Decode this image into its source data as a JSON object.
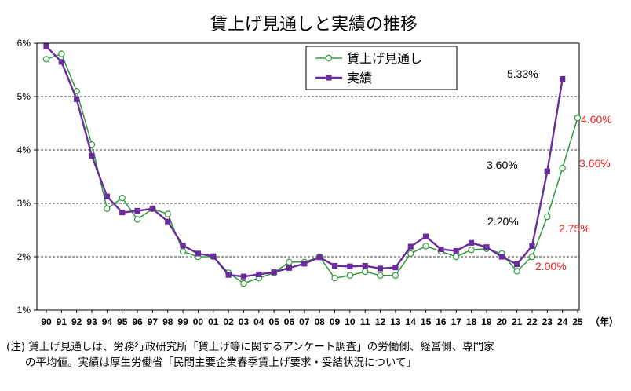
{
  "chart_data": {
    "type": "line",
    "title": "賃上げ見通しと実績の推移",
    "xlabel": "（年）",
    "ylabel": "",
    "ylim": [
      1,
      6
    ],
    "yticks": [
      "1%",
      "2%",
      "3%",
      "4%",
      "5%",
      "6%"
    ],
    "grid": "horizontal dashed",
    "legend_position": "top-right",
    "categories": [
      "90",
      "91",
      "92",
      "93",
      "94",
      "95",
      "96",
      "97",
      "98",
      "99",
      "00",
      "01",
      "02",
      "03",
      "04",
      "05",
      "06",
      "07",
      "08",
      "09",
      "10",
      "11",
      "12",
      "13",
      "14",
      "15",
      "16",
      "17",
      "18",
      "19",
      "20",
      "21",
      "22",
      "23",
      "24",
      "25"
    ],
    "series": [
      {
        "name": "賃上げ見通し",
        "color": "#2e9a3a",
        "marker": "open-circle",
        "values": [
          5.7,
          5.8,
          5.1,
          4.1,
          2.9,
          3.1,
          2.7,
          2.9,
          2.8,
          2.1,
          2.0,
          2.0,
          1.7,
          1.5,
          1.6,
          1.7,
          1.9,
          1.9,
          2.0,
          1.6,
          1.65,
          1.72,
          1.65,
          1.65,
          2.06,
          2.2,
          2.1,
          2.0,
          2.13,
          2.15,
          2.06,
          1.73,
          2.0,
          2.75,
          3.66,
          4.6
        ]
      },
      {
        "name": "実績",
        "color": "#6a2c9a",
        "marker": "filled-square",
        "values": [
          5.94,
          5.65,
          4.95,
          3.89,
          3.13,
          2.83,
          2.86,
          2.9,
          2.66,
          2.21,
          2.06,
          2.01,
          1.66,
          1.63,
          1.67,
          1.71,
          1.79,
          1.87,
          1.99,
          1.83,
          1.82,
          1.83,
          1.78,
          1.8,
          2.19,
          2.38,
          2.14,
          2.11,
          2.26,
          2.18,
          2.0,
          1.86,
          2.2,
          3.6,
          5.33,
          null
        ]
      }
    ],
    "annotations": [
      {
        "text": "5.33%",
        "color": "#000000"
      },
      {
        "text": "4.60%",
        "color": "#e02020"
      },
      {
        "text": "3.60%",
        "color": "#000000"
      },
      {
        "text": "3.66%",
        "color": "#e02020"
      },
      {
        "text": "2.20%",
        "color": "#000000"
      },
      {
        "text": "2.75%",
        "color": "#e02020"
      },
      {
        "text": "2.00%",
        "color": "#e02020"
      }
    ]
  },
  "note": {
    "line1": "(注) 賃上げ見通しは、労務行政研究所「賃上げ等に関するアンケート調査」の労働側、経営側、専門家",
    "line2": "の平均値。実績は厚生労働省「民間主要企業春季賃上げ要求・妥結状況について」"
  }
}
